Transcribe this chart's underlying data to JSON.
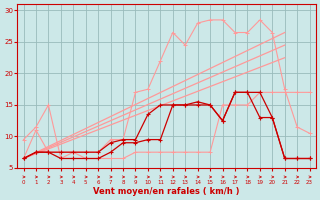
{
  "x": [
    0,
    1,
    2,
    3,
    4,
    5,
    6,
    7,
    8,
    9,
    10,
    11,
    12,
    13,
    14,
    15,
    16,
    17,
    18,
    19,
    20,
    21,
    22,
    23
  ],
  "series": {
    "dark1": [
      6.5,
      7.5,
      7.5,
      6.5,
      6.5,
      6.5,
      6.5,
      7.5,
      9.0,
      9.0,
      9.5,
      9.5,
      15.0,
      15.0,
      15.0,
      15.0,
      12.5,
      17.0,
      17.0,
      13.0,
      13.0,
      6.5,
      6.5,
      6.5
    ],
    "dark2": [
      6.5,
      7.5,
      7.5,
      7.5,
      7.5,
      7.5,
      7.5,
      9.0,
      9.5,
      9.5,
      13.5,
      15.0,
      15.0,
      15.0,
      15.5,
      15.0,
      12.5,
      17.0,
      17.0,
      17.0,
      13.0,
      6.5,
      6.5,
      6.5
    ],
    "light1": [
      9.5,
      11.5,
      15.0,
      6.5,
      7.5,
      6.5,
      6.5,
      6.5,
      6.5,
      7.5,
      7.5,
      7.5,
      7.5,
      7.5,
      7.5,
      7.5,
      15.0,
      15.0,
      15.0,
      17.0,
      17.0,
      17.0,
      17.0,
      17.0
    ],
    "light2": [
      6.5,
      11.0,
      7.5,
      7.5,
      7.5,
      7.5,
      7.5,
      9.5,
      9.5,
      17.0,
      17.5,
      22.0,
      26.5,
      24.5,
      28.0,
      28.5,
      28.5,
      26.5,
      26.5,
      28.5,
      26.5,
      17.5,
      11.5,
      10.5
    ]
  },
  "trends": [
    {
      "x": [
        0,
        21
      ],
      "y": [
        6.5,
        26.5
      ]
    },
    {
      "x": [
        0,
        21
      ],
      "y": [
        6.5,
        24.5
      ]
    },
    {
      "x": [
        0,
        21
      ],
      "y": [
        6.5,
        22.5
      ]
    }
  ],
  "bg_color": "#cce8e8",
  "grid_color": "#99bbbb",
  "dark_color": "#cc0000",
  "light_color": "#ff9999",
  "xlabel": "Vent moyen/en rafales ( km/h )",
  "ylim": [
    5,
    31
  ],
  "xlim": [
    -0.5,
    23.5
  ],
  "ytick_vals": [
    5,
    10,
    15,
    20,
    25,
    30
  ],
  "ytick_labels": [
    "5",
    "10",
    "15",
    "20",
    "25",
    "30"
  ],
  "xtick_vals": [
    0,
    1,
    2,
    3,
    4,
    5,
    6,
    7,
    8,
    9,
    10,
    11,
    12,
    13,
    14,
    15,
    16,
    17,
    18,
    19,
    20,
    21,
    22,
    23
  ]
}
